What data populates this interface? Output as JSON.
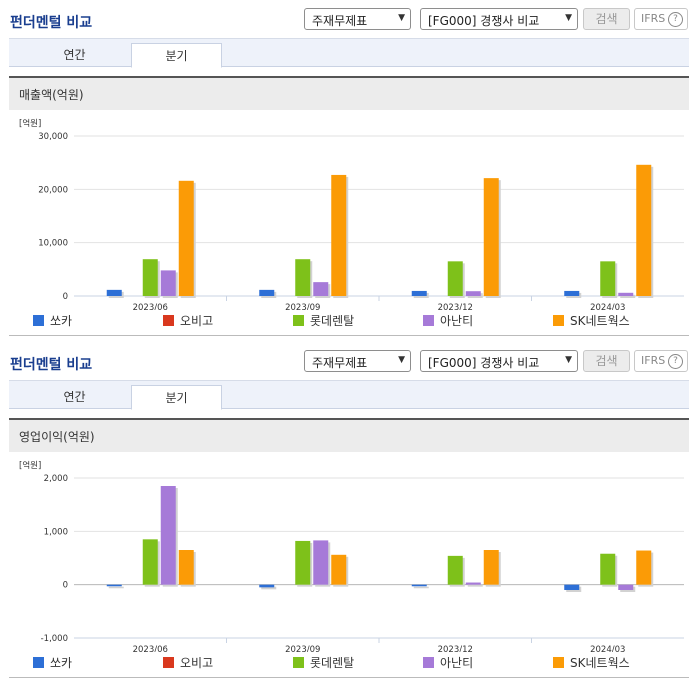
{
  "panels": [
    {
      "title": "펀더멘털 비교",
      "select1": "주재무제표",
      "select2": "[FG000] 경쟁사 비교",
      "search_label": "검색",
      "ifrs_label": "IFRS",
      "ifrs_help": "?",
      "tabs": [
        {
          "label": "연간",
          "active": false
        },
        {
          "label": "분기",
          "active": true
        }
      ],
      "metric": "매출액(억원)"
    },
    {
      "title": "펀더멘털 비교",
      "select1": "주재무제표",
      "select2": "[FG000] 경쟁사 비교",
      "search_label": "검색",
      "ifrs_label": "IFRS",
      "ifrs_help": "?",
      "tabs": [
        {
          "label": "연간",
          "active": false
        },
        {
          "label": "분기",
          "active": true
        }
      ],
      "metric": "영업이익(억원)"
    }
  ],
  "colors": {
    "쏘카": "#2d6fd6",
    "오비고": "#d9381e",
    "롯데렌탈": "#7ec11a",
    "아난티": "#a67ad8",
    "SK네트웍스": "#fb9b06"
  },
  "chart_data": [
    {
      "type": "bar",
      "unit_label": "[억원]",
      "categories": [
        "2023/06",
        "2023/09",
        "2023/12",
        "2024/03"
      ],
      "ylim": [
        0,
        30000
      ],
      "yticks": [
        0,
        10000,
        20000,
        30000
      ],
      "ytick_labels": [
        "0",
        "10,000",
        "20,000",
        "30,000"
      ],
      "series": [
        {
          "name": "쏘카",
          "values": [
            1150,
            1150,
            950,
            950
          ]
        },
        {
          "name": "오비고",
          "values": [
            0,
            0,
            0,
            0
          ]
        },
        {
          "name": "롯데렌탈",
          "values": [
            6900,
            6900,
            6500,
            6500
          ]
        },
        {
          "name": "아난티",
          "values": [
            4800,
            2600,
            900,
            600
          ]
        },
        {
          "name": "SK네트웍스",
          "values": [
            21600,
            22700,
            22100,
            24600
          ]
        }
      ],
      "legend": "bottom"
    },
    {
      "type": "bar",
      "unit_label": "[억원]",
      "categories": [
        "2023/06",
        "2023/09",
        "2023/12",
        "2024/03"
      ],
      "ylim": [
        -1000,
        2000
      ],
      "yticks": [
        -1000,
        0,
        1000,
        2000
      ],
      "ytick_labels": [
        "-1,000",
        "0",
        "1,000",
        "2,000"
      ],
      "series": [
        {
          "name": "쏘카",
          "values": [
            -30,
            -50,
            -30,
            -100
          ]
        },
        {
          "name": "오비고",
          "values": [
            0,
            0,
            0,
            0
          ]
        },
        {
          "name": "롯데렌탈",
          "values": [
            850,
            820,
            540,
            580
          ]
        },
        {
          "name": "아난티",
          "values": [
            1850,
            830,
            40,
            -100
          ]
        },
        {
          "name": "SK네트웍스",
          "values": [
            650,
            560,
            650,
            640
          ]
        }
      ],
      "legend": "bottom"
    }
  ]
}
